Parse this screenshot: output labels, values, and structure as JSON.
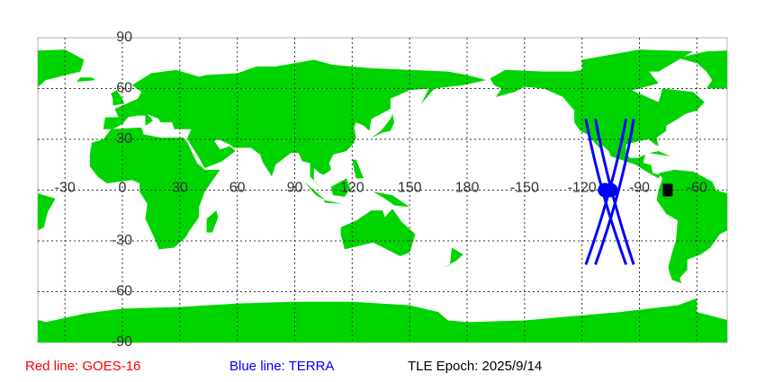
{
  "map": {
    "longitude_labels": [
      "-30",
      "0",
      "30",
      "60",
      "90",
      "120",
      "150",
      "180",
      "-150",
      "-120",
      "-90",
      "-60"
    ],
    "latitude_labels": [
      "90",
      "60",
      "30",
      "-30",
      "-60",
      "-90"
    ],
    "colors": {
      "land": "#00d400",
      "ocean": "#ffffff",
      "grid": "#333333",
      "labels": "#333333",
      "terra_track": "#0000ff",
      "goes_marker": "#000000"
    },
    "terra_track": [
      [
        [
          -118,
          42
        ],
        [
          -111,
          0
        ],
        [
          -97,
          -44
        ]
      ],
      [
        [
          -113,
          42
        ],
        [
          -106,
          0
        ],
        [
          -93,
          -44
        ]
      ],
      [
        [
          -97,
          42
        ],
        [
          -104,
          0
        ],
        [
          -118,
          -44
        ]
      ],
      [
        [
          -93,
          42
        ],
        [
          -99,
          0
        ],
        [
          -113,
          -44
        ]
      ]
    ],
    "terra_positions": [
      [
        -108,
        0
      ],
      [
        -105,
        0
      ]
    ],
    "goes_position": [
      -75,
      0
    ]
  },
  "legend": {
    "red_line": {
      "label": "Red line: GOES-16",
      "color": "#ff0000"
    },
    "blue_line": {
      "label": "Blue line: TERRA",
      "color": "#0000ff"
    },
    "epoch": {
      "label": "TLE Epoch: 2025/9/14",
      "color": "#000000"
    }
  }
}
